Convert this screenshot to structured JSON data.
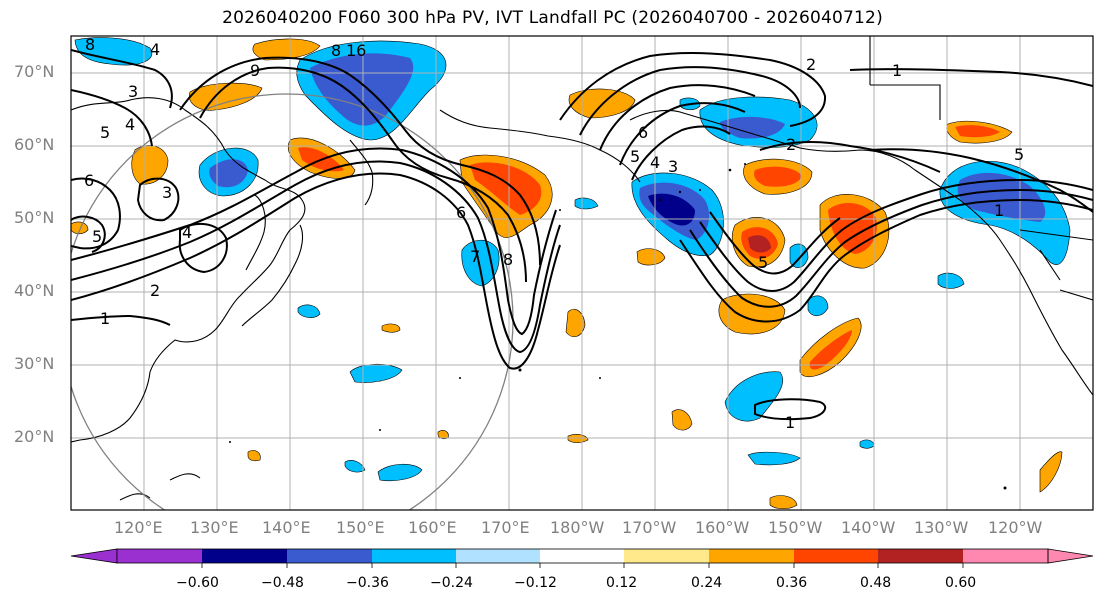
{
  "title": "2026040200 F060 300 hPa PV, IVT Landfall PC (2026040700 - 2026040712)",
  "lat_labels": [
    "70°N",
    "60°N",
    "50°N",
    "40°N",
    "30°N",
    "20°N"
  ],
  "lon_labels": [
    "120°E",
    "130°E",
    "140°E",
    "150°E",
    "160°E",
    "170°E",
    "180°W",
    "170°W",
    "160°W",
    "150°W",
    "140°W",
    "130°W",
    "120°W"
  ],
  "colorbar": {
    "tick_labels": [
      "−0.60",
      "−0.48",
      "−0.36",
      "−0.24",
      "−0.12",
      "0.12",
      "0.24",
      "0.36",
      "0.48",
      "0.60"
    ],
    "colors": [
      "#9b30d0",
      "#00008b",
      "#3a5bd0",
      "#00bfff",
      "#b0e2ff",
      "#ffffff",
      "#ffe98a",
      "#ffa500",
      "#ff4500",
      "#b22222",
      "#ff88b0"
    ]
  },
  "contour_labels": [
    "8",
    "16",
    "4",
    "8",
    "3",
    "4",
    "5",
    "6",
    "5",
    "4",
    "3",
    "2",
    "1",
    "1",
    "9",
    "6",
    "8",
    "6",
    "5",
    "4",
    "3",
    "2",
    "5",
    "1",
    "5",
    "1",
    "2",
    "7"
  ],
  "colors": {
    "neg_strong": "#3a5bd0",
    "neg_mid": "#00bfff",
    "neg_dark": "#00008b",
    "pos_mid": "#ffa500",
    "pos_strong": "#ff4500",
    "pos_dark": "#b22222",
    "grid": "#b0b0b0",
    "contour": "#000000",
    "circle": "#808080"
  }
}
